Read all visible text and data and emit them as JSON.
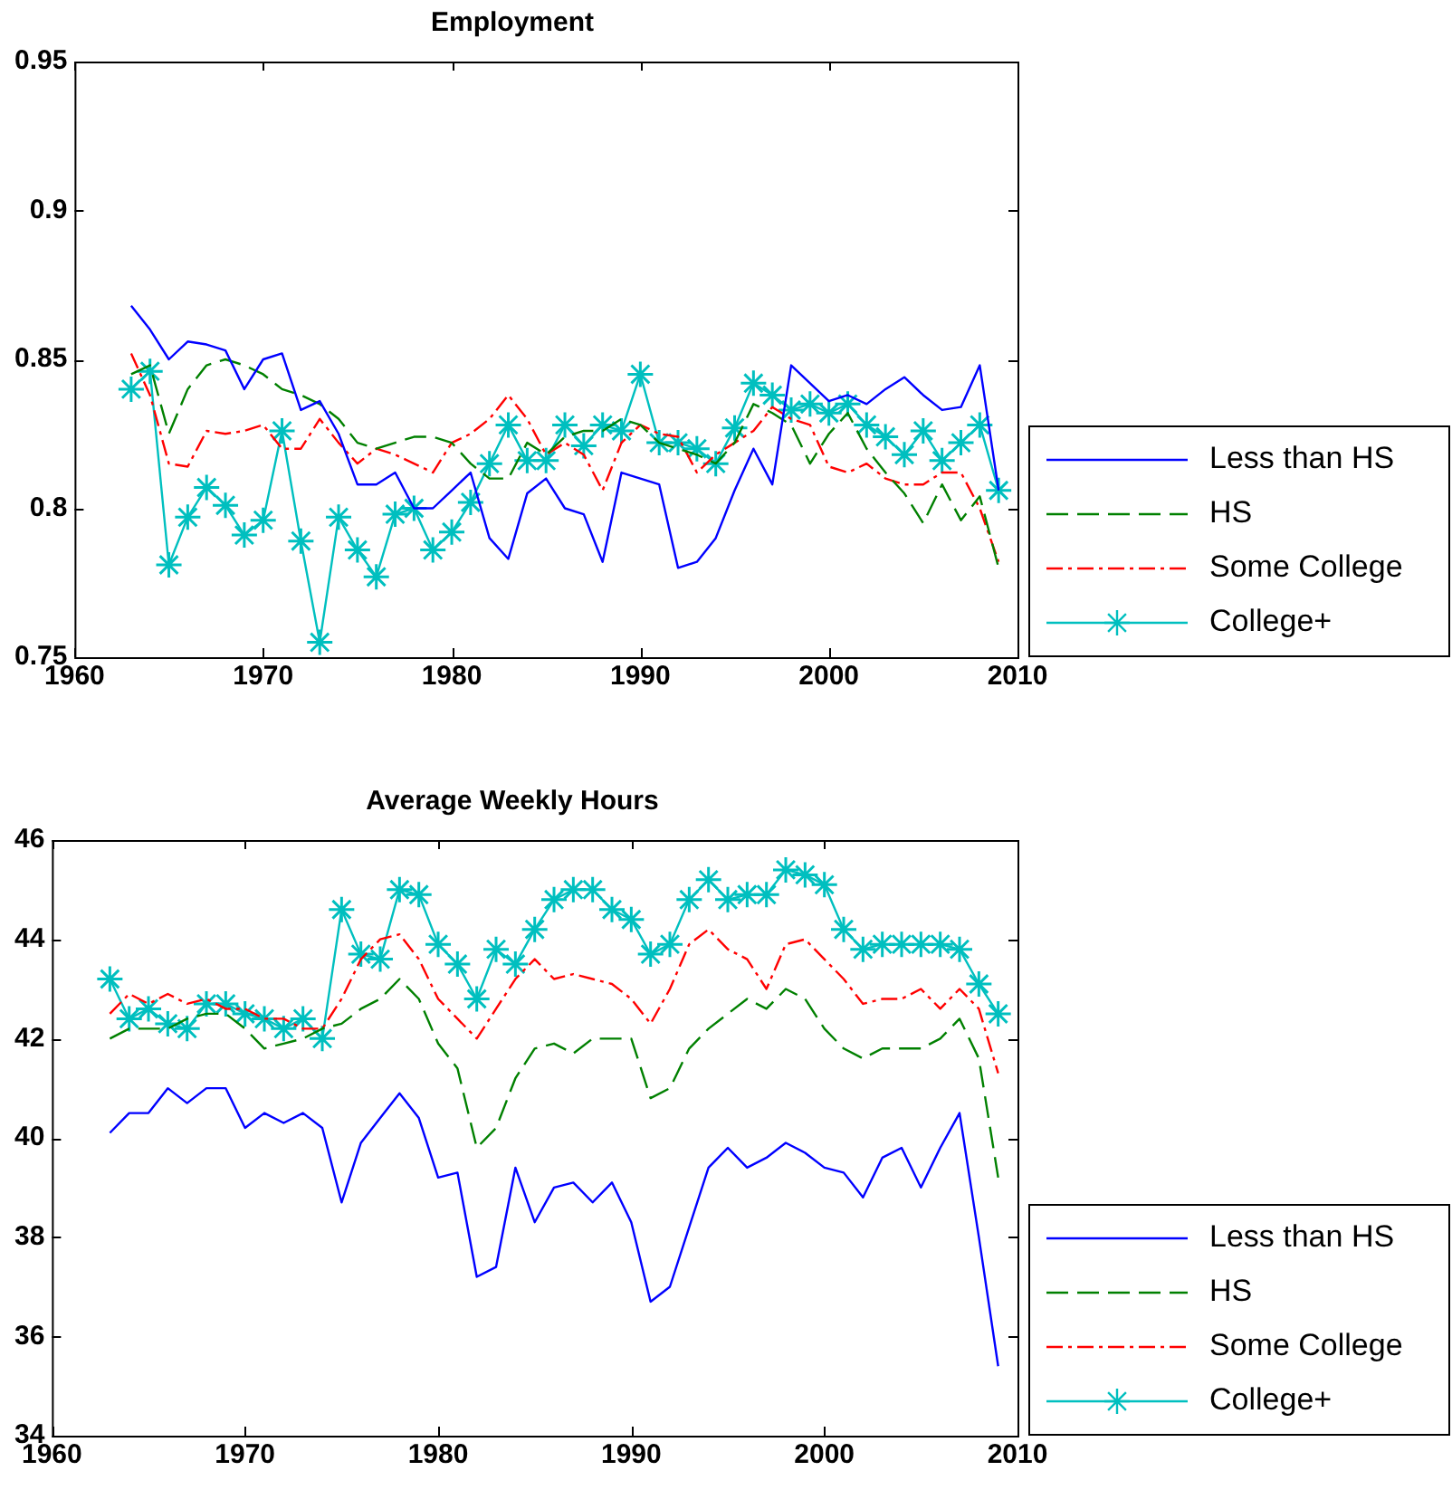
{
  "chart_data": [
    {
      "type": "line",
      "title": "Employment",
      "legend": "bottom right",
      "grid": false,
      "x": [
        1963,
        1964,
        1965,
        1966,
        1967,
        1968,
        1969,
        1970,
        1971,
        1972,
        1973,
        1974,
        1975,
        1976,
        1977,
        1978,
        1979,
        1980,
        1981,
        1982,
        1983,
        1984,
        1985,
        1986,
        1987,
        1988,
        1989,
        1990,
        1991,
        1992,
        1993,
        1994,
        1995,
        1996,
        1997,
        1998,
        1999,
        2000,
        2001,
        2002,
        2003,
        2004,
        2005,
        2006,
        2007,
        2008,
        2009
      ],
      "xlim": [
        1960,
        2010
      ],
      "xticks": [
        1960,
        1970,
        1980,
        1990,
        2000,
        2010
      ],
      "ylim": [
        0.75,
        0.95
      ],
      "yticks": [
        0.75,
        0.8,
        0.85,
        0.9,
        0.95
      ],
      "series": [
        {
          "name": "Less than HS",
          "color": "#0000ff",
          "line_style": "solid",
          "marker": "none",
          "values": [
            0.868,
            0.86,
            0.85,
            0.856,
            0.855,
            0.853,
            0.84,
            0.85,
            0.852,
            0.833,
            0.836,
            0.825,
            0.808,
            0.808,
            0.812,
            0.8,
            0.8,
            0.806,
            0.812,
            0.79,
            0.783,
            0.805,
            0.81,
            0.8,
            0.798,
            0.782,
            0.812,
            0.81,
            0.808,
            0.78,
            0.782,
            0.79,
            0.806,
            0.82,
            0.808,
            0.848,
            0.842,
            0.836,
            0.838,
            0.835,
            0.84,
            0.844,
            0.838,
            0.833,
            0.834,
            0.848,
            0.806
          ]
        },
        {
          "name": "HS",
          "color": "#008000",
          "line_style": "dashed",
          "marker": "none",
          "values": [
            0.845,
            0.848,
            0.825,
            0.84,
            0.848,
            0.85,
            0.848,
            0.845,
            0.84,
            0.838,
            0.835,
            0.83,
            0.822,
            0.82,
            0.822,
            0.824,
            0.824,
            0.822,
            0.815,
            0.81,
            0.81,
            0.822,
            0.818,
            0.824,
            0.826,
            0.826,
            0.83,
            0.828,
            0.822,
            0.82,
            0.818,
            0.815,
            0.822,
            0.835,
            0.832,
            0.828,
            0.815,
            0.825,
            0.832,
            0.82,
            0.812,
            0.805,
            0.795,
            0.808,
            0.796,
            0.804,
            0.78
          ]
        },
        {
          "name": "Some College",
          "color": "#ff0000",
          "line_style": "dotted",
          "marker": "none",
          "values": [
            0.852,
            0.838,
            0.815,
            0.814,
            0.826,
            0.825,
            0.826,
            0.828,
            0.82,
            0.82,
            0.83,
            0.822,
            0.815,
            0.82,
            0.818,
            0.815,
            0.812,
            0.822,
            0.825,
            0.83,
            0.838,
            0.83,
            0.818,
            0.822,
            0.818,
            0.806,
            0.822,
            0.828,
            0.825,
            0.824,
            0.812,
            0.818,
            0.822,
            0.826,
            0.834,
            0.83,
            0.828,
            0.814,
            0.812,
            0.815,
            0.81,
            0.808,
            0.808,
            0.812,
            0.812,
            0.8,
            0.782
          ]
        },
        {
          "name": "College+",
          "color": "#00bfbf",
          "line_style": "solid",
          "marker": "cross",
          "values": [
            0.84,
            0.846,
            0.781,
            0.797,
            0.807,
            0.801,
            0.791,
            0.796,
            0.826,
            0.789,
            0.755,
            0.797,
            0.786,
            0.777,
            0.798,
            0.8,
            0.786,
            0.792,
            0.802,
            0.815,
            0.828,
            0.816,
            0.816,
            0.828,
            0.821,
            0.828,
            0.826,
            0.845,
            0.822,
            0.822,
            0.82,
            0.815,
            0.827,
            0.842,
            0.838,
            0.833,
            0.835,
            0.832,
            0.835,
            0.828,
            0.824,
            0.818,
            0.826,
            0.816,
            0.822,
            0.828,
            0.806
          ]
        }
      ]
    },
    {
      "type": "line",
      "title": "Average Weekly Hours",
      "legend": "bottom right",
      "grid": false,
      "x": [
        1963,
        1964,
        1965,
        1966,
        1967,
        1968,
        1969,
        1970,
        1971,
        1972,
        1973,
        1974,
        1975,
        1976,
        1977,
        1978,
        1979,
        1980,
        1981,
        1982,
        1983,
        1984,
        1985,
        1986,
        1987,
        1988,
        1989,
        1990,
        1991,
        1992,
        1993,
        1994,
        1995,
        1996,
        1997,
        1998,
        1999,
        2000,
        2001,
        2002,
        2003,
        2004,
        2005,
        2006,
        2007,
        2008,
        2009
      ],
      "xlim": [
        1960,
        2010
      ],
      "xticks": [
        1960,
        1970,
        1980,
        1990,
        2000,
        2010
      ],
      "ylim": [
        34,
        46
      ],
      "yticks": [
        34,
        36,
        38,
        40,
        42,
        44,
        46
      ],
      "series": [
        {
          "name": "Less than HS",
          "color": "#0000ff",
          "line_style": "solid",
          "marker": "none",
          "values": [
            40.1,
            40.5,
            40.5,
            41.0,
            40.7,
            41.0,
            41.0,
            40.2,
            40.5,
            40.3,
            40.5,
            40.2,
            38.7,
            39.9,
            40.4,
            40.9,
            40.4,
            39.2,
            39.3,
            37.2,
            37.4,
            39.4,
            38.3,
            39.0,
            39.1,
            38.7,
            39.1,
            38.3,
            36.7,
            37.0,
            38.2,
            39.4,
            39.8,
            39.4,
            39.6,
            39.9,
            39.7,
            39.4,
            39.3,
            38.8,
            39.6,
            39.8,
            39.0,
            39.8,
            40.5,
            38.0,
            35.4
          ]
        },
        {
          "name": "HS",
          "color": "#008000",
          "line_style": "dashed",
          "marker": "none",
          "values": [
            42.0,
            42.2,
            42.2,
            42.2,
            42.4,
            42.5,
            42.5,
            42.2,
            41.8,
            41.9,
            42.0,
            42.2,
            42.3,
            42.6,
            42.8,
            43.2,
            42.8,
            41.9,
            41.4,
            39.8,
            40.2,
            41.2,
            41.8,
            41.9,
            41.7,
            42.0,
            42.0,
            42.0,
            40.8,
            41.0,
            41.8,
            42.2,
            42.5,
            42.8,
            42.6,
            43.0,
            42.8,
            42.2,
            41.8,
            41.6,
            41.8,
            41.8,
            41.8,
            42.0,
            42.4,
            41.6,
            39.2
          ]
        },
        {
          "name": "Some College",
          "color": "#ff0000",
          "line_style": "dotted",
          "marker": "none",
          "values": [
            42.5,
            42.9,
            42.7,
            42.9,
            42.7,
            42.8,
            42.6,
            42.6,
            42.4,
            42.4,
            42.2,
            42.2,
            42.8,
            43.6,
            44.0,
            44.1,
            43.6,
            42.8,
            42.4,
            42.0,
            42.6,
            43.2,
            43.6,
            43.2,
            43.3,
            43.2,
            43.1,
            42.8,
            42.3,
            43.0,
            43.9,
            44.2,
            43.8,
            43.6,
            43.0,
            43.9,
            44.0,
            43.6,
            43.2,
            42.7,
            42.8,
            42.8,
            43.0,
            42.6,
            43.0,
            42.6,
            41.3
          ]
        },
        {
          "name": "College+",
          "color": "#00bfbf",
          "line_style": "solid",
          "marker": "cross",
          "values": [
            43.2,
            42.4,
            42.6,
            42.3,
            42.2,
            42.7,
            42.7,
            42.5,
            42.4,
            42.2,
            42.4,
            42.0,
            44.6,
            43.7,
            43.6,
            45.0,
            44.9,
            43.9,
            43.5,
            42.8,
            43.8,
            43.5,
            44.2,
            44.8,
            45.0,
            45.0,
            44.6,
            44.4,
            43.7,
            43.9,
            44.8,
            45.2,
            44.8,
            44.9,
            44.9,
            45.4,
            45.3,
            45.1,
            44.2,
            43.8,
            43.9,
            43.9,
            43.9,
            43.9,
            43.8,
            43.1,
            42.5
          ]
        }
      ]
    }
  ]
}
